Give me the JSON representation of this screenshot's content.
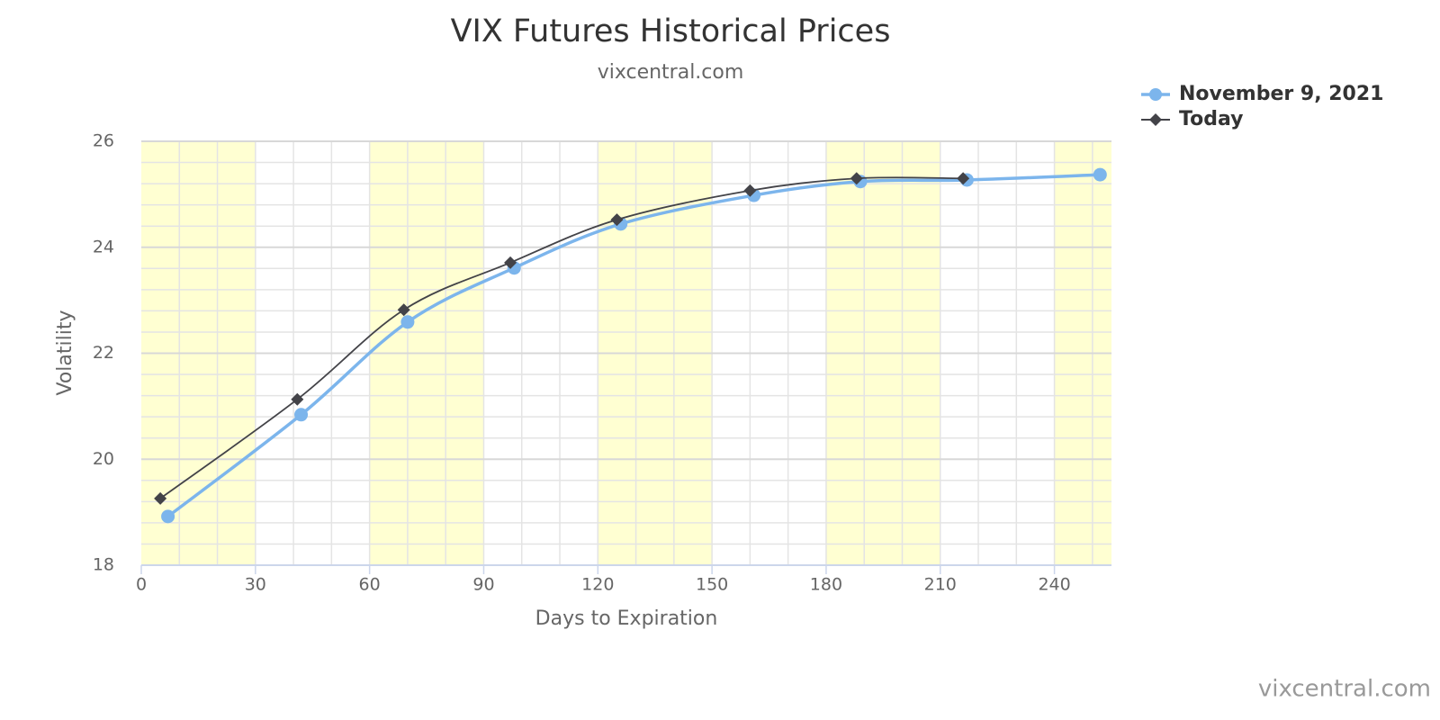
{
  "chart_data": {
    "type": "line",
    "title": "VIX Futures Historical Prices",
    "subtitle": "vixcentral.com",
    "x_label": "Days to Expiration",
    "y_label": "Volatility",
    "credits": "vixcentral.com",
    "xlim": [
      0,
      255
    ],
    "xticks": [
      0,
      30,
      60,
      90,
      120,
      150,
      180,
      210,
      240
    ],
    "ylim": [
      18,
      26
    ],
    "yticks": [
      18,
      20,
      22,
      24,
      26
    ],
    "grid": true,
    "alternate_bands": true,
    "band_color": "#ffffd2",
    "legend": "top-right",
    "series": [
      {
        "name": "November 9, 2021",
        "color": "#7cb5ec",
        "marker": "circle",
        "x": [
          7,
          42,
          70,
          98,
          126,
          161,
          189,
          217,
          252
        ],
        "values": [
          18.92,
          20.84,
          22.59,
          23.61,
          24.44,
          24.98,
          25.24,
          25.27,
          25.37
        ]
      },
      {
        "name": "Today",
        "color": "#434348",
        "marker": "diamond",
        "x": [
          5,
          41,
          69,
          97,
          125,
          160,
          188,
          216
        ],
        "values": [
          19.26,
          21.13,
          22.82,
          23.71,
          24.52,
          25.07,
          25.3,
          25.3
        ]
      }
    ]
  }
}
